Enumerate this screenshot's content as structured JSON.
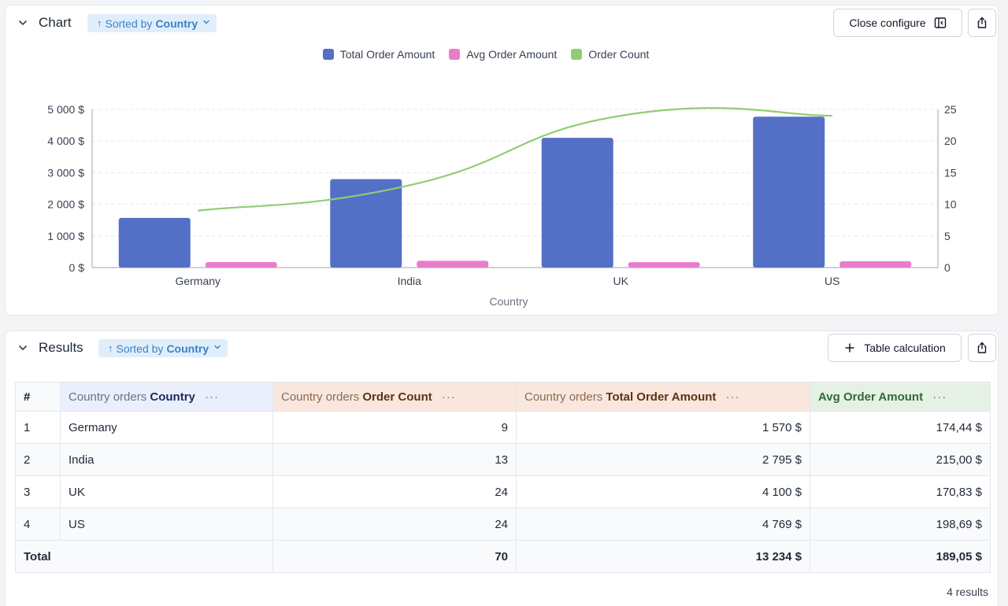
{
  "chart_panel": {
    "title": "Chart",
    "sort": {
      "prefix": "Sorted by",
      "field": "Country"
    },
    "close_configure_label": "Close configure"
  },
  "chart_data": {
    "type": "bar",
    "categories": [
      "Germany",
      "India",
      "UK",
      "US"
    ],
    "series": [
      {
        "name": "Total Order Amount",
        "type": "bar",
        "axis": "left",
        "color": "#5470c6",
        "values": [
          1570,
          2795,
          4100,
          4769
        ]
      },
      {
        "name": "Avg Order Amount",
        "type": "bar",
        "axis": "left",
        "color": "#ea7ccc",
        "values": [
          174.44,
          215.0,
          170.83,
          198.69
        ]
      },
      {
        "name": "Order Count",
        "type": "line",
        "axis": "right",
        "color": "#91cc75",
        "values": [
          9,
          13,
          24,
          24
        ]
      }
    ],
    "xlabel": "Country",
    "y_left": {
      "min": 0,
      "max": 5000,
      "ticks": [
        "0 $",
        "1 000 $",
        "2 000 $",
        "3 000 $",
        "4 000 $",
        "5 000 $"
      ]
    },
    "y_right": {
      "min": 0,
      "max": 25,
      "ticks": [
        "0",
        "5",
        "10",
        "15",
        "20",
        "25"
      ]
    },
    "legend": "top-center",
    "grid": true
  },
  "results_panel": {
    "title": "Results",
    "sort": {
      "prefix": "Sorted by",
      "field": "Country"
    },
    "table_calc_label": "Table calculation",
    "count_label": "4 results"
  },
  "table": {
    "headers": {
      "index": "#",
      "country": {
        "dim": "Country orders",
        "strong": "Country"
      },
      "order_count": {
        "dim": "Country orders",
        "strong": "Order Count"
      },
      "total_amount": {
        "dim": "Country orders",
        "strong": "Total Order Amount"
      },
      "avg_amount": {
        "dim": "",
        "strong": "Avg Order Amount"
      },
      "menu": "···"
    },
    "rows": [
      {
        "idx": "1",
        "country": "Germany",
        "order_count": "9",
        "total_amount": "1 570 $",
        "avg_amount": "174,44 $"
      },
      {
        "idx": "2",
        "country": "India",
        "order_count": "13",
        "total_amount": "2 795 $",
        "avg_amount": "215,00 $"
      },
      {
        "idx": "3",
        "country": "UK",
        "order_count": "24",
        "total_amount": "4 100 $",
        "avg_amount": "170,83 $"
      },
      {
        "idx": "4",
        "country": "US",
        "order_count": "24",
        "total_amount": "4 769 $",
        "avg_amount": "198,69 $"
      }
    ],
    "totals": {
      "label": "Total",
      "order_count": "70",
      "total_amount": "13 234 $",
      "avg_amount": "189,05 $"
    }
  },
  "icons": {
    "collapse": "chevron-down-icon",
    "sort": "arrow-up-icon",
    "dropdown": "chevron-down-icon",
    "panel": "sidebar-panel-icon",
    "export": "share-export-icon",
    "add": "plus-icon",
    "column_menu": "more-horizontal-icon"
  }
}
